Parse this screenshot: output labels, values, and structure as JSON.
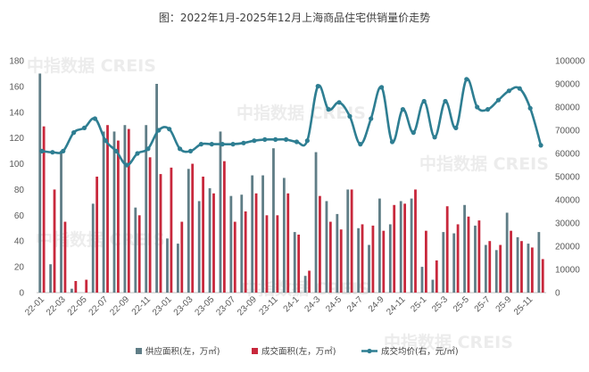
{
  "chart_data": {
    "type": "bar+line",
    "title": "图：2022年1月-2025年12月上海商品住宅供销量价走势",
    "watermark": "中指数据 CREIS",
    "categories": [
      "22-01",
      "22-02",
      "22-03",
      "22-04",
      "22-05",
      "22-06",
      "22-07",
      "22-08",
      "22-09",
      "22-10",
      "22-11",
      "22-12",
      "23-01",
      "23-02",
      "23-03",
      "23-04",
      "23-05",
      "23-06",
      "23-07",
      "23-08",
      "23-09",
      "23-10",
      "23-11",
      "23-12",
      "24-1",
      "24-2",
      "24-3",
      "24-4",
      "24-5",
      "24-6",
      "24-7",
      "24-8",
      "24-9",
      "24-10",
      "24-11",
      "24-12",
      "25-1",
      "25-2",
      "25-3",
      "25-4",
      "25-5",
      "25-6",
      "25-7",
      "25-8",
      "25-9",
      "25-10",
      "25-11",
      "25-12"
    ],
    "x_tick_labels": [
      "22-01",
      "22-03",
      "22-05",
      "22-07",
      "22-09",
      "22-11",
      "23-01",
      "23-03",
      "23-05",
      "23-07",
      "23-09",
      "23-11",
      "24-1",
      "24-3",
      "24-5",
      "24-7",
      "24-9",
      "24-11",
      "25-1",
      "25-3",
      "25-5",
      "25-7",
      "25-9",
      "25-11"
    ],
    "y_left": {
      "min": 0,
      "max": 180,
      "step": 20,
      "ticks": [
        "0",
        "20",
        "40",
        "60",
        "80",
        "100",
        "120",
        "140",
        "160",
        "180"
      ]
    },
    "y_right": {
      "min": 0,
      "max": 100000,
      "step": 10000,
      "ticks": [
        "0",
        "10000",
        "20000",
        "30000",
        "40000",
        "50000",
        "60000",
        "70000",
        "80000",
        "90000",
        "100000"
      ]
    },
    "series": [
      {
        "name": "供应面积(左，万㎡)",
        "axis": "left",
        "kind": "bar",
        "color": "#5f7d86",
        "values": [
          170,
          22,
          110,
          3,
          0,
          69,
          125,
          125,
          130,
          66,
          130,
          162,
          42,
          38,
          96,
          71,
          81,
          125,
          75,
          76,
          91,
          91,
          112,
          89,
          47,
          13,
          109,
          71,
          61,
          80,
          50,
          37,
          73,
          53,
          71,
          73,
          20,
          10,
          47,
          46,
          68,
          52,
          37,
          33,
          62,
          43,
          38,
          47
        ]
      },
      {
        "name": "成交面积(左，万㎡)",
        "axis": "left",
        "kind": "bar",
        "color": "#c8283c",
        "values": [
          129,
          80,
          55,
          9,
          10,
          90,
          130,
          118,
          127,
          60,
          105,
          92,
          97,
          55,
          100,
          90,
          77,
          102,
          55,
          63,
          77,
          60,
          60,
          77,
          45,
          17,
          75,
          55,
          49,
          80,
          53,
          52,
          48,
          68,
          69,
          80,
          48,
          25,
          67,
          53,
          59,
          56,
          40,
          37,
          48,
          40,
          35,
          26
        ]
      },
      {
        "name": "成交均价(右，元/㎡)",
        "axis": "right",
        "kind": "line",
        "color": "#2e7e92",
        "values": [
          61000,
          60500,
          61000,
          69000,
          71000,
          75000,
          65500,
          61000,
          55000,
          60000,
          62000,
          70000,
          70500,
          62000,
          61000,
          64000,
          64000,
          64000,
          64000,
          64500,
          65500,
          66000,
          66000,
          66000,
          65000,
          65500,
          89000,
          79000,
          82000,
          76000,
          64000,
          75000,
          88500,
          65000,
          79000,
          69000,
          82500,
          67000,
          82500,
          71000,
          92000,
          80000,
          79000,
          83000,
          87000,
          88000,
          79500,
          63500
        ]
      }
    ]
  }
}
